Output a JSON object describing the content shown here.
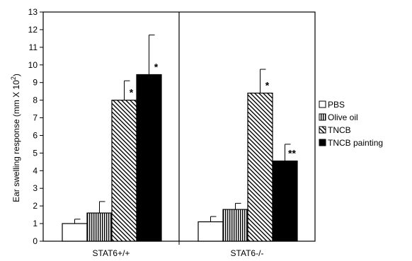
{
  "chart_data": {
    "type": "bar",
    "ylabel_main": "Ear swelling response (mm X 10",
    "ylabel_sup": "2",
    "ylabel_end": ")",
    "ylim": [
      0,
      13
    ],
    "yticks": [
      "0",
      "1",
      "2",
      "3",
      "4",
      "5",
      "6",
      "7",
      "8",
      "9",
      "10",
      "11",
      "12",
      "13"
    ],
    "categories": [
      "STAT6+/+",
      "STAT6-/-"
    ],
    "series": [
      {
        "name": "PBS",
        "values": [
          1.0,
          1.1
        ],
        "errors": [
          0.25,
          0.3
        ],
        "pattern": "white"
      },
      {
        "name": "Olive oil",
        "values": [
          1.6,
          1.8
        ],
        "errors": [
          0.65,
          0.35
        ],
        "pattern": "vertical"
      },
      {
        "name": "TNCB",
        "values": [
          8.0,
          8.4
        ],
        "errors": [
          1.1,
          1.35
        ],
        "pattern": "diagonal"
      },
      {
        "name": "TNCB painting",
        "values": [
          9.45,
          4.55
        ],
        "errors": [
          2.25,
          0.95
        ],
        "pattern": "black"
      }
    ],
    "annotations": [
      {
        "category": 0,
        "series": 2,
        "text": "*"
      },
      {
        "category": 0,
        "series": 3,
        "text": "*"
      },
      {
        "category": 1,
        "series": 2,
        "text": "*"
      },
      {
        "category": 1,
        "series": 3,
        "text": "**"
      }
    ],
    "legend_position": "right"
  }
}
